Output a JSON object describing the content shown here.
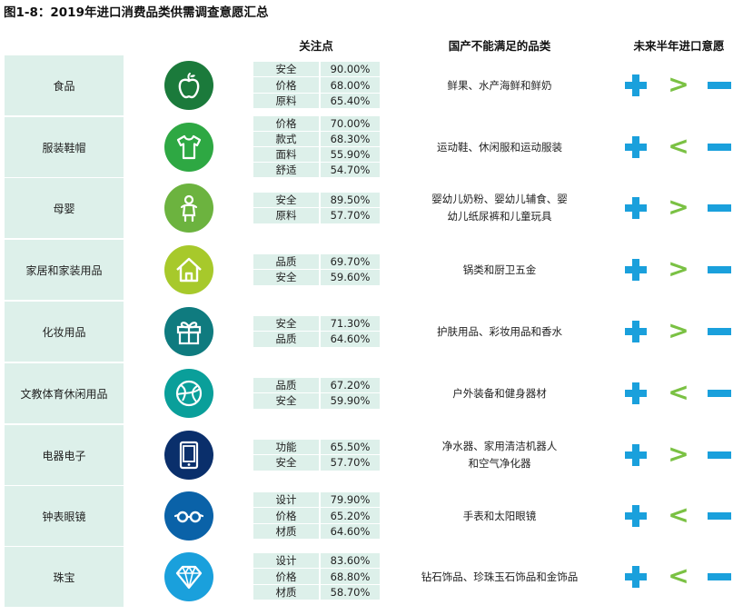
{
  "title": "图1-8：2019年进口消费品类供需调查意愿汇总",
  "headers": {
    "focus": "关注点",
    "categories": "国产不能满足的品类",
    "intent": "未来半年进口意愿"
  },
  "rows": [
    {
      "name": "食品",
      "icon": "apple-icon",
      "icon_color": "#1b7a3b",
      "focus": [
        [
          "安全",
          "90.00%"
        ],
        [
          "价格",
          "68.00%"
        ],
        [
          "原料",
          "65.40%"
        ]
      ],
      "cats": [
        "鲜果、水产海鲜和鲜奶"
      ],
      "cmp": ">"
    },
    {
      "name": "服装鞋帽",
      "icon": "tshirt-icon",
      "icon_color": "#2ea843",
      "focus": [
        [
          "价格",
          "70.00%"
        ],
        [
          "款式",
          "68.30%"
        ],
        [
          "面料",
          "55.90%"
        ],
        [
          "舒适",
          "54.70%"
        ]
      ],
      "cats": [
        "运动鞋、休闲服和运动服装"
      ],
      "cmp": "<"
    },
    {
      "name": "母婴",
      "icon": "baby-icon",
      "icon_color": "#6cb33f",
      "focus": [
        [
          "安全",
          "89.50%"
        ],
        [
          "原料",
          "57.70%"
        ]
      ],
      "cats": [
        "婴幼儿奶粉、婴幼儿辅食、婴",
        "幼儿纸尿裤和儿童玩具"
      ],
      "cmp": ">"
    },
    {
      "name": "家居和家装用品",
      "icon": "house-icon",
      "icon_color": "#a7c92b",
      "focus": [
        [
          "品质",
          "69.70%"
        ],
        [
          "安全",
          "59.60%"
        ]
      ],
      "cats": [
        "锅类和厨卫五金"
      ],
      "cmp": ">"
    },
    {
      "name": "化妆用品",
      "icon": "gift-icon",
      "icon_color": "#0f7b7f",
      "focus": [
        [
          "安全",
          "71.30%"
        ],
        [
          "品质",
          "64.60%"
        ]
      ],
      "cats": [
        "护肤用品、彩妆用品和香水"
      ],
      "cmp": ">"
    },
    {
      "name": "文教体育休闲用品",
      "icon": "ball-icon",
      "icon_color": "#0a9f9a",
      "focus": [
        [
          "品质",
          "67.20%"
        ],
        [
          "安全",
          "59.90%"
        ]
      ],
      "cats": [
        "户外装备和健身器材"
      ],
      "cmp": "<"
    },
    {
      "name": "电器电子",
      "icon": "tablet-icon",
      "icon_color": "#0a2f6b",
      "focus": [
        [
          "功能",
          "65.50%"
        ],
        [
          "安全",
          "57.70%"
        ]
      ],
      "cats": [
        "净水器、家用清洁机器人",
        "和空气净化器"
      ],
      "cmp": ">"
    },
    {
      "name": "钟表眼镜",
      "icon": "glasses-icon",
      "icon_color": "#0a62a8",
      "focus": [
        [
          "设计",
          "79.90%"
        ],
        [
          "价格",
          "65.20%"
        ],
        [
          "材质",
          "64.60%"
        ]
      ],
      "cats": [
        "手表和太阳眼镜"
      ],
      "cmp": "<"
    },
    {
      "name": "珠宝",
      "icon": "diamond-icon",
      "icon_color": "#1aa0dc",
      "focus": [
        [
          "设计",
          "83.60%"
        ],
        [
          "价格",
          "68.80%"
        ],
        [
          "材质",
          "58.70%"
        ]
      ],
      "cats": [
        "钻石饰品、珍珠玉石饰品和金饰品"
      ],
      "cmp": "<"
    }
  ]
}
